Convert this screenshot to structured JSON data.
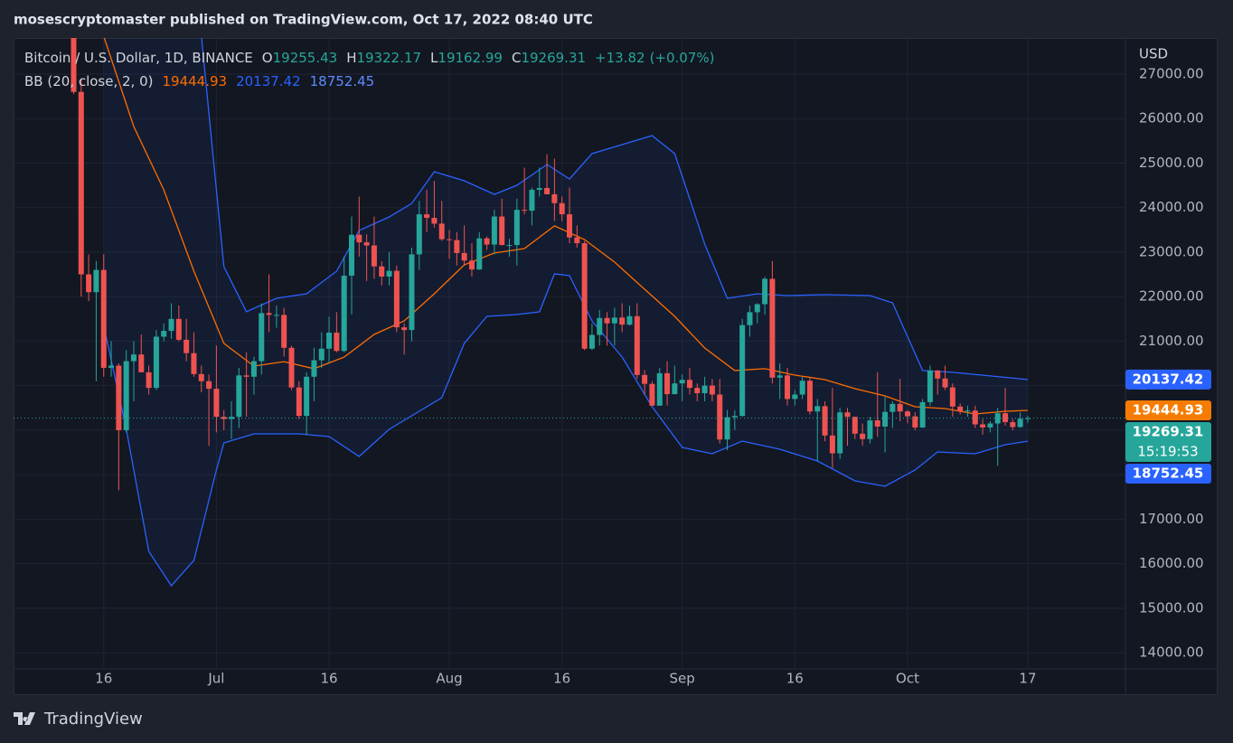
{
  "publisher_line": "mosescryptomaster published on TradingView.com, Oct 17, 2022 08:40 UTC",
  "footer_brand": "TradingView",
  "chart_data": {
    "type": "candlestick",
    "y_unit": "USD",
    "header": {
      "ohlc_labels": [
        "O",
        "H",
        "L",
        "C"
      ],
      "change": "+13.82",
      "change_pct": "(+0.07%)"
    },
    "countdown": "15:19:53",
    "xlim": [
      "2022-06-04",
      "2022-10-30"
    ],
    "xticks": [
      {
        "value": "2022-06-16",
        "label": "16"
      },
      {
        "value": "2022-07-01",
        "label": "Jul"
      },
      {
        "value": "2022-07-16",
        "label": "16"
      },
      {
        "value": "2022-08-01",
        "label": "Aug"
      },
      {
        "value": "2022-08-16",
        "label": "16"
      },
      {
        "value": "2022-09-01",
        "label": "Sep"
      },
      {
        "value": "2022-09-16",
        "label": "16"
      },
      {
        "value": "2022-10-01",
        "label": "Oct"
      },
      {
        "value": "2022-10-17",
        "label": "17"
      }
    ],
    "ylim": [
      13636,
      27812
    ],
    "yticks": [
      {
        "value": 14000,
        "label": "14000.00"
      },
      {
        "value": 15000,
        "label": "15000.00"
      },
      {
        "value": 16000,
        "label": "16000.00"
      },
      {
        "value": 17000,
        "label": "17000.00"
      },
      {
        "value": 18000,
        "label": "18000.00"
      },
      {
        "value": 19000,
        "label": "19000.00"
      },
      {
        "value": 20000,
        "label": "20000.00"
      },
      {
        "value": 21000,
        "label": "21000.00"
      },
      {
        "value": 22000,
        "label": "22000.00"
      },
      {
        "value": 23000,
        "label": "23000.00"
      },
      {
        "value": 24000,
        "label": "24000.00"
      },
      {
        "value": 25000,
        "label": "25000.00"
      },
      {
        "value": 26000,
        "label": "26000.00"
      },
      {
        "value": 27000,
        "label": "27000.00"
      }
    ],
    "grid": true,
    "series": [
      {
        "name": "Bitcoin / U.S. Dollar, 1D, BINANCE",
        "up_color": "#26a69a",
        "down_color": "#ef5350",
        "x": [
          "2022-06-12",
          "2022-06-13",
          "2022-06-14",
          "2022-06-15",
          "2022-06-16",
          "2022-06-17",
          "2022-06-18",
          "2022-06-19",
          "2022-06-20",
          "2022-06-21",
          "2022-06-22",
          "2022-06-23",
          "2022-06-24",
          "2022-06-25",
          "2022-06-26",
          "2022-06-27",
          "2022-06-28",
          "2022-06-29",
          "2022-06-30",
          "2022-07-01",
          "2022-07-02",
          "2022-07-03",
          "2022-07-04",
          "2022-07-05",
          "2022-07-06",
          "2022-07-07",
          "2022-07-08",
          "2022-07-09",
          "2022-07-10",
          "2022-07-11",
          "2022-07-12",
          "2022-07-13",
          "2022-07-14",
          "2022-07-15",
          "2022-07-16",
          "2022-07-17",
          "2022-07-18",
          "2022-07-19",
          "2022-07-20",
          "2022-07-21",
          "2022-07-22",
          "2022-07-23",
          "2022-07-24",
          "2022-07-25",
          "2022-07-26",
          "2022-07-27",
          "2022-07-28",
          "2022-07-29",
          "2022-07-30",
          "2022-07-31",
          "2022-08-01",
          "2022-08-02",
          "2022-08-03",
          "2022-08-04",
          "2022-08-05",
          "2022-08-06",
          "2022-08-07",
          "2022-08-08",
          "2022-08-09",
          "2022-08-10",
          "2022-08-11",
          "2022-08-12",
          "2022-08-13",
          "2022-08-14",
          "2022-08-15",
          "2022-08-16",
          "2022-08-17",
          "2022-08-18",
          "2022-08-19",
          "2022-08-20",
          "2022-08-21",
          "2022-08-22",
          "2022-08-23",
          "2022-08-24",
          "2022-08-25",
          "2022-08-26",
          "2022-08-27",
          "2022-08-28",
          "2022-08-29",
          "2022-08-30",
          "2022-08-31",
          "2022-09-01",
          "2022-09-02",
          "2022-09-03",
          "2022-09-04",
          "2022-09-05",
          "2022-09-06",
          "2022-09-07",
          "2022-09-08",
          "2022-09-09",
          "2022-09-10",
          "2022-09-11",
          "2022-09-12",
          "2022-09-13",
          "2022-09-14",
          "2022-09-15",
          "2022-09-16",
          "2022-09-17",
          "2022-09-18",
          "2022-09-19",
          "2022-09-20",
          "2022-09-21",
          "2022-09-22",
          "2022-09-23",
          "2022-09-24",
          "2022-09-25",
          "2022-09-26",
          "2022-09-27",
          "2022-09-28",
          "2022-09-29",
          "2022-09-30",
          "2022-10-01",
          "2022-10-02",
          "2022-10-03",
          "2022-10-04",
          "2022-10-05",
          "2022-10-06",
          "2022-10-07",
          "2022-10-08",
          "2022-10-09",
          "2022-10-10",
          "2022-10-11",
          "2022-10-12",
          "2022-10-13",
          "2022-10-14",
          "2022-10-15",
          "2022-10-16",
          "2022-10-17"
        ],
        "open": [
          28400,
          26600,
          22500,
          22100,
          22600,
          20400,
          20450,
          19000,
          20550,
          20700,
          20300,
          19950,
          21100,
          21230,
          21500,
          21030,
          20730,
          20260,
          20100,
          19930,
          19300,
          19250,
          19300,
          20230,
          20200,
          20550,
          21630,
          21590,
          21590,
          20850,
          19960,
          19320,
          20200,
          20570,
          20830,
          21190,
          20780,
          22470,
          23390,
          23220,
          23150,
          22680,
          22450,
          22580,
          21310,
          21250,
          22950,
          23850,
          23770,
          23640,
          23290,
          23270,
          22980,
          22810,
          22610,
          23310,
          23170,
          23800,
          23160,
          23160,
          23950,
          23930,
          24400,
          24440,
          24300,
          24100,
          23850,
          23330,
          23200,
          20830,
          21140,
          21520,
          21400,
          21530,
          21370,
          21560,
          20240,
          20040,
          19550,
          20280,
          19810,
          20050,
          20130,
          19950,
          19830,
          20000,
          19800,
          18790,
          19290,
          19320,
          21360,
          21650,
          21830,
          22400,
          20180,
          20230,
          19700,
          19800,
          20110,
          19420,
          19540,
          18880,
          18480,
          19400,
          19300,
          18920,
          18800,
          19220,
          19080,
          19410,
          19590,
          19420,
          19310,
          19060,
          19630,
          20340,
          20160,
          19960,
          19530,
          19420,
          19440,
          19130,
          19060,
          19150,
          19380,
          19180,
          19070,
          19255.43
        ],
        "high": [
          28500,
          26900,
          22950,
          22800,
          22950,
          21000,
          20500,
          20800,
          21000,
          21150,
          20450,
          21250,
          21400,
          21850,
          21800,
          21500,
          21200,
          20450,
          20250,
          20900,
          19450,
          19650,
          20400,
          20750,
          20650,
          21850,
          22500,
          21800,
          21750,
          20900,
          20100,
          20300,
          20850,
          21200,
          21550,
          21650,
          22900,
          23800,
          24250,
          23400,
          23800,
          22800,
          23000,
          22700,
          21400,
          23100,
          24150,
          24400,
          24600,
          24150,
          23500,
          23450,
          23600,
          23200,
          23450,
          23350,
          23950,
          24200,
          23300,
          24200,
          24900,
          24450,
          24900,
          25200,
          25100,
          24250,
          24450,
          23600,
          23250,
          21400,
          21700,
          21650,
          21750,
          21850,
          21800,
          21850,
          20350,
          20100,
          20400,
          20550,
          20450,
          20250,
          20400,
          20050,
          20200,
          20150,
          20150,
          19450,
          19450,
          21500,
          21800,
          21850,
          22450,
          22800,
          20500,
          20400,
          19900,
          20200,
          20200,
          19700,
          19650,
          19950,
          19500,
          19500,
          19300,
          19150,
          19300,
          20300,
          19750,
          19650,
          20150,
          19450,
          19400,
          19700,
          20450,
          20350,
          20450,
          20050,
          19600,
          19550,
          19550,
          19250,
          19200,
          19500,
          19950,
          19250,
          19400,
          19322.17
        ],
        "low": [
          26550,
          22000,
          21900,
          20100,
          20200,
          20200,
          17650,
          18950,
          19650,
          20300,
          19800,
          19900,
          21000,
          21050,
          21000,
          20550,
          20200,
          19850,
          18650,
          18950,
          19000,
          18800,
          19050,
          19300,
          19800,
          20250,
          21200,
          21300,
          20650,
          19900,
          19250,
          18900,
          19650,
          20400,
          20500,
          20750,
          20750,
          21600,
          22900,
          22350,
          22400,
          22250,
          22250,
          21200,
          20700,
          21000,
          22600,
          23450,
          23550,
          23250,
          22850,
          22700,
          22700,
          22450,
          22600,
          23050,
          22950,
          23150,
          22900,
          22700,
          23850,
          23600,
          24250,
          24300,
          23700,
          23700,
          23200,
          23100,
          20800,
          20800,
          20900,
          20900,
          20900,
          21200,
          21350,
          20150,
          19800,
          19550,
          19550,
          19550,
          19800,
          19650,
          19800,
          19650,
          19650,
          19650,
          18700,
          18550,
          19000,
          19300,
          21100,
          21400,
          21600,
          20050,
          19700,
          19550,
          19550,
          19700,
          19350,
          18300,
          18750,
          18150,
          18350,
          18650,
          18800,
          18650,
          18700,
          18850,
          18500,
          19050,
          19200,
          19150,
          19000,
          19050,
          19550,
          19800,
          19900,
          19300,
          19350,
          19300,
          19050,
          18900,
          18950,
          18200,
          19100,
          19000,
          19050,
          19162.99
        ],
        "close": [
          26600,
          22500,
          22100,
          22600,
          20400,
          20450,
          19000,
          20550,
          20700,
          20300,
          19950,
          21100,
          21230,
          21500,
          21030,
          20730,
          20260,
          20100,
          19930,
          19300,
          19250,
          19300,
          20230,
          20200,
          20550,
          21630,
          21590,
          21590,
          20850,
          19960,
          19320,
          20200,
          20570,
          20830,
          21190,
          20780,
          22470,
          23390,
          23220,
          23150,
          22680,
          22450,
          22580,
          21310,
          21250,
          22950,
          23850,
          23770,
          23640,
          23290,
          23270,
          22980,
          22810,
          22610,
          23310,
          23170,
          23800,
          23160,
          23160,
          23950,
          23930,
          24400,
          24440,
          24300,
          24100,
          23850,
          23330,
          23200,
          20830,
          21140,
          21520,
          21400,
          21530,
          21370,
          21560,
          20240,
          20040,
          19550,
          20280,
          19810,
          20050,
          20130,
          19950,
          19830,
          20000,
          19800,
          18790,
          19290,
          19320,
          21360,
          21650,
          21830,
          22400,
          20180,
          20230,
          19700,
          19800,
          20110,
          19420,
          19540,
          18880,
          18480,
          19400,
          19300,
          18920,
          18800,
          19220,
          19080,
          19410,
          19590,
          19420,
          19310,
          19060,
          19630,
          20340,
          20160,
          19960,
          19530,
          19420,
          19440,
          19130,
          19060,
          19150,
          19380,
          19180,
          19070,
          19255.43,
          19269.31
        ]
      }
    ],
    "indicator": {
      "label": "BB (20, close, 2, 0)",
      "fill_color": "#2962ff",
      "basis": {
        "color": "#ff6d00",
        "x": [
          "2022-06-16",
          "2022-06-20",
          "2022-06-24",
          "2022-06-28",
          "2022-07-02",
          "2022-07-06",
          "2022-07-10",
          "2022-07-14",
          "2022-07-18",
          "2022-07-22",
          "2022-07-26",
          "2022-07-30",
          "2022-08-03",
          "2022-08-07",
          "2022-08-11",
          "2022-08-15",
          "2022-08-19",
          "2022-08-23",
          "2022-08-27",
          "2022-08-31",
          "2022-09-04",
          "2022-09-08",
          "2022-09-12",
          "2022-09-16",
          "2022-09-20",
          "2022-09-24",
          "2022-09-28",
          "2022-10-02",
          "2022-10-06",
          "2022-10-10",
          "2022-10-14",
          "2022-10-17"
        ],
        "values": [
          27853,
          25822,
          24400,
          22572,
          20950,
          20440,
          20540,
          20380,
          20640,
          21150,
          21455,
          22065,
          22715,
          22980,
          23080,
          23590,
          23283,
          22775,
          22165,
          21557,
          20846,
          20340,
          20380,
          20237,
          20135,
          19932,
          19770,
          19526,
          19485,
          19364,
          19425,
          19444.93
        ]
      },
      "upper": {
        "color": "#2962ff",
        "x": [
          "2022-06-29",
          "2022-07-02",
          "2022-07-05",
          "2022-07-09",
          "2022-07-13",
          "2022-07-17",
          "2022-07-20",
          "2022-07-24",
          "2022-07-27",
          "2022-07-30",
          "2022-08-03",
          "2022-08-07",
          "2022-08-10",
          "2022-08-14",
          "2022-08-17",
          "2022-08-20",
          "2022-08-24",
          "2022-08-28",
          "2022-08-31",
          "2022-09-04",
          "2022-09-07",
          "2022-09-11",
          "2022-09-15",
          "2022-09-20",
          "2022-09-26",
          "2022-09-29",
          "2022-10-03",
          "2022-10-07",
          "2022-10-12",
          "2022-10-17"
        ],
        "values": [
          27853,
          22674,
          21660,
          21963,
          22065,
          22572,
          23486,
          23791,
          24096,
          24807,
          24604,
          24299,
          24502,
          24969,
          24644,
          25213,
          25416,
          25619,
          25213,
          23182,
          21963,
          22065,
          22024,
          22045,
          22024,
          21862,
          20340,
          20300,
          20218,
          20137.42
        ]
      },
      "lower": {
        "color": "#2962ff",
        "x": [
          "2022-06-16",
          "2022-06-19",
          "2022-06-22",
          "2022-06-25",
          "2022-06-28",
          "2022-07-01",
          "2022-07-02",
          "2022-07-06",
          "2022-07-12",
          "2022-07-16",
          "2022-07-20",
          "2022-07-24",
          "2022-07-28",
          "2022-07-31",
          "2022-08-03",
          "2022-08-06",
          "2022-08-10",
          "2022-08-13",
          "2022-08-15",
          "2022-08-17",
          "2022-08-20",
          "2022-08-24",
          "2022-08-28",
          "2022-09-01",
          "2022-09-05",
          "2022-09-09",
          "2022-09-14",
          "2022-09-19",
          "2022-09-24",
          "2022-09-28",
          "2022-10-02",
          "2022-10-05",
          "2022-10-10",
          "2022-10-14",
          "2022-10-17"
        ],
        "values": [
          21354,
          19018,
          16276,
          15505,
          16073,
          18105,
          18714,
          18917,
          18917,
          18856,
          18409,
          19018,
          19424,
          19729,
          20950,
          21557,
          21597,
          21658,
          22512,
          22471,
          21455,
          20643,
          19526,
          18612,
          18470,
          18754,
          18572,
          18307,
          17861,
          17739,
          18105,
          18511,
          18470,
          18673,
          18752.45
        ]
      }
    }
  }
}
